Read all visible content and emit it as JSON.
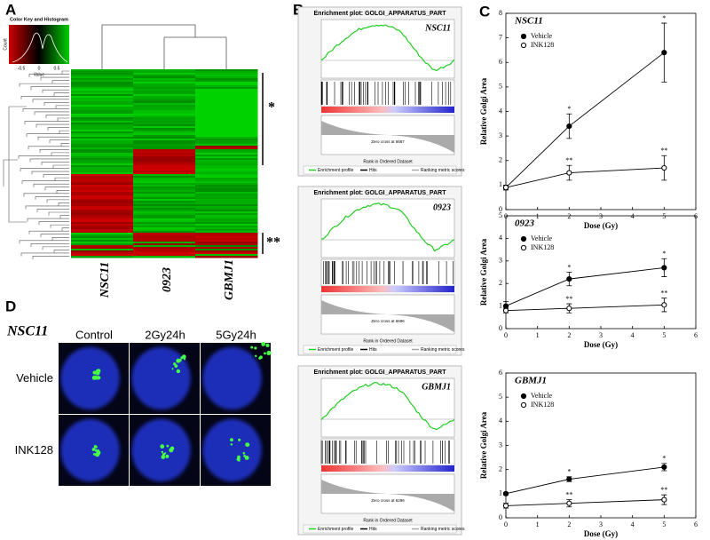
{
  "panel_labels": [
    "A",
    "B",
    "C",
    "D"
  ],
  "panel_a": {
    "color_key_title": "Color Key and Histogram",
    "count_label": "Count",
    "value_label": "Value",
    "key_ticks": [
      "-0.5",
      "0",
      "0.5"
    ],
    "samples": [
      "NSC11",
      "0923",
      "GBMJ1"
    ],
    "cluster_marks": [
      "*",
      "**"
    ]
  },
  "panel_b": {
    "plots": [
      {
        "title": "Enrichment plot: GOLGI_APPARATUS_PART",
        "sample": "NSC11",
        "x_label": "Rank in Ordered Dataset",
        "zero_cross": "Zero cross at 6687",
        "legend": [
          "Enrichment profile",
          "Hits",
          "Ranking metric scores"
        ]
      },
      {
        "title": "Enrichment plot: GOLGI_APPARATUS_PART",
        "sample": "0923",
        "x_label": "Rank in Ordered Dataset",
        "zero_cross": "Zero cross at 6696",
        "legend": [
          "Enrichment profile",
          "Hits",
          "Ranking metric scores"
        ]
      },
      {
        "title": "Enrichment plot: GOLGI_APPARATUS_PART",
        "sample": "GBMJ1",
        "x_label": "Rank in Ordered Dataset",
        "zero_cross": "Zero cross at 6296",
        "legend": [
          "Enrichment profile",
          "Hits",
          "Ranking metric scores"
        ]
      }
    ]
  },
  "panel_d": {
    "title": "NSC11",
    "columns": [
      "Control",
      "2Gy24h",
      "5Gy24h"
    ],
    "rows": [
      "Vehicle",
      "INK128"
    ]
  },
  "chart_data": [
    {
      "type": "line",
      "title": "NSC11",
      "x_label": "Dose (Gy)",
      "y_label": "Relative Golgi Area",
      "x": [
        0,
        2,
        5
      ],
      "xlim": [
        0,
        6
      ],
      "xticks": [
        0,
        1,
        2,
        3,
        4,
        5,
        6
      ],
      "ylim": [
        0,
        8
      ],
      "yticks": [
        0,
        1,
        2,
        3,
        4,
        5,
        6,
        7,
        8
      ],
      "legend": "upper left",
      "series": [
        {
          "name": "Vehicle",
          "color": "#000000",
          "marker": "filled",
          "values": [
            0.9,
            3.4,
            6.4
          ],
          "errors": [
            0.1,
            0.5,
            1.2
          ],
          "annotations": [
            null,
            "*",
            "*"
          ]
        },
        {
          "name": "INK128",
          "color": "#000000",
          "marker": "open",
          "values": [
            0.9,
            1.5,
            1.7
          ],
          "errors": [
            0.1,
            0.3,
            0.5
          ],
          "annotations": [
            null,
            "**",
            "**"
          ]
        }
      ]
    },
    {
      "type": "line",
      "title": "0923",
      "x_label": "Dose (Gy)",
      "y_label": "Relative Golgi Area",
      "x": [
        0,
        2,
        5
      ],
      "xlim": [
        0,
        6
      ],
      "xticks": [
        0,
        1,
        2,
        3,
        4,
        5,
        6
      ],
      "ylim": [
        0,
        5
      ],
      "yticks": [
        0,
        1,
        2,
        3,
        4,
        5
      ],
      "legend": "upper left",
      "series": [
        {
          "name": "Vehicle",
          "color": "#000000",
          "marker": "filled",
          "values": [
            1.0,
            2.2,
            2.7
          ],
          "errors": [
            0.2,
            0.3,
            0.4
          ],
          "annotations": [
            null,
            "*",
            "*"
          ]
        },
        {
          "name": "INK128",
          "color": "#000000",
          "marker": "open",
          "values": [
            0.8,
            0.9,
            1.05
          ],
          "errors": [
            0.1,
            0.2,
            0.3
          ],
          "annotations": [
            null,
            "**",
            "**"
          ]
        }
      ]
    },
    {
      "type": "line",
      "title": "GBMJ1",
      "x_label": "Dose (Gy)",
      "y_label": "Relative Golgi Area",
      "x": [
        0,
        2,
        5
      ],
      "xlim": [
        0,
        6
      ],
      "xticks": [
        0,
        1,
        2,
        3,
        4,
        5,
        6
      ],
      "ylim": [
        0,
        6
      ],
      "yticks": [
        0,
        1,
        2,
        3,
        4,
        5,
        6
      ],
      "legend": "upper left",
      "series": [
        {
          "name": "Vehicle",
          "color": "#000000",
          "marker": "filled",
          "values": [
            1.0,
            1.6,
            2.1
          ],
          "errors": [
            0.05,
            0.1,
            0.15
          ],
          "annotations": [
            null,
            "*",
            "*"
          ]
        },
        {
          "name": "INK128",
          "color": "#000000",
          "marker": "open",
          "values": [
            0.5,
            0.6,
            0.75
          ],
          "errors": [
            0.1,
            0.15,
            0.2
          ],
          "annotations": [
            null,
            "**",
            "**"
          ]
        }
      ]
    }
  ]
}
